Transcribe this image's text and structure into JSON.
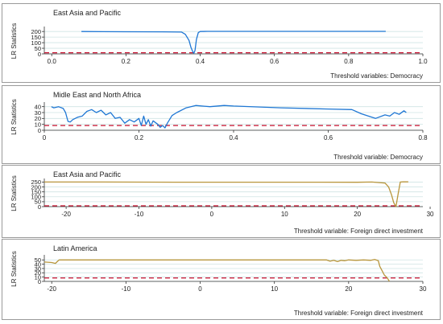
{
  "chart_data": [
    {
      "type": "line",
      "title": "East Asia and Pacific",
      "xlabel": "Threshold variables: Democracy",
      "ylabel": "LR Statistics",
      "xlim": [
        -0.02,
        1.0
      ],
      "ylim": [
        0,
        230
      ],
      "xticks": [
        0.0,
        0.2,
        0.4,
        0.6,
        0.8,
        1.0
      ],
      "xtick_labels": [
        "0.0",
        "0.2",
        "0.4",
        "0.6",
        "0.8",
        "1.0"
      ],
      "yticks": [
        0,
        50,
        100,
        150,
        200
      ],
      "ytick_labels": [
        "0",
        "50",
        "100",
        "150",
        "200"
      ],
      "grid": true,
      "threshold": 10,
      "series": [
        {
          "color": "#1f77d4",
          "x": [
            0.08,
            0.2,
            0.3,
            0.35,
            0.36,
            0.37,
            0.375,
            0.38,
            0.383,
            0.386,
            0.39,
            0.395,
            0.4,
            0.42,
            0.5,
            0.6,
            0.7,
            0.8,
            0.9
          ],
          "y": [
            200,
            198,
            197,
            195,
            175,
            120,
            60,
            20,
            5,
            30,
            130,
            190,
            200,
            201,
            201,
            201,
            201,
            201,
            201
          ]
        }
      ]
    },
    {
      "type": "line",
      "title": "Midle East and North Africa",
      "xlabel": "Threshold variable: Democracy",
      "ylabel": "LR Statistics",
      "xlim": [
        0.0,
        0.8
      ],
      "ylim": [
        0,
        45
      ],
      "xticks": [
        0.0,
        0.2,
        0.4,
        0.6,
        0.8
      ],
      "xtick_labels": [
        "0",
        "0.2",
        "0.4",
        "0.6",
        "0.8"
      ],
      "yticks": [
        0,
        10,
        20,
        30,
        40
      ],
      "ytick_labels": [
        "0",
        "10",
        "20",
        "30",
        "40"
      ],
      "grid": true,
      "threshold": 8,
      "series": [
        {
          "color": "#1f77d4",
          "x": [
            0.015,
            0.02,
            0.03,
            0.04,
            0.045,
            0.05,
            0.055,
            0.06,
            0.07,
            0.08,
            0.09,
            0.1,
            0.11,
            0.12,
            0.13,
            0.14,
            0.15,
            0.16,
            0.17,
            0.18,
            0.19,
            0.2,
            0.205,
            0.21,
            0.215,
            0.22,
            0.225,
            0.23,
            0.24,
            0.245,
            0.25,
            0.255,
            0.26,
            0.27,
            0.28,
            0.3,
            0.32,
            0.35,
            0.38,
            0.4,
            0.5,
            0.6,
            0.65,
            0.67,
            0.7,
            0.72,
            0.73,
            0.74,
            0.75,
            0.76,
            0.765
          ],
          "y": [
            40,
            38,
            40,
            37,
            30,
            15,
            14,
            18,
            22,
            24,
            32,
            35,
            30,
            34,
            26,
            30,
            20,
            22,
            12,
            18,
            14,
            20,
            8,
            24,
            10,
            18,
            7,
            16,
            10,
            5,
            8,
            4,
            12,
            25,
            30,
            38,
            42,
            40,
            42,
            41,
            38,
            36,
            35,
            28,
            20,
            26,
            24,
            30,
            27,
            33,
            30
          ]
        }
      ]
    },
    {
      "type": "line",
      "title": "East Asia and Pacific",
      "xlabel": "Threshold variable: Foreign direct investment",
      "ylabel": "LR Statistics",
      "xlim": [
        -23,
        29
      ],
      "ylim": [
        0,
        270
      ],
      "xticks": [
        -20,
        -10,
        0,
        10,
        20,
        30
      ],
      "xtick_labels": [
        "-20",
        "-10",
        "0",
        "10",
        "20",
        "30"
      ],
      "yticks": [
        0,
        50,
        100,
        150,
        200,
        250
      ],
      "ytick_labels": [
        "0",
        "50",
        "100",
        "150",
        "200",
        "250"
      ],
      "grid": true,
      "threshold": 8,
      "series": [
        {
          "color": "#b8963c",
          "x": [
            -23,
            -15,
            -5,
            5,
            15,
            20,
            22,
            23,
            23.8,
            24.3,
            24.7,
            25.0,
            25.3,
            25.6,
            25.9,
            26.3,
            26.6,
            27
          ],
          "y": [
            250,
            250,
            249,
            249,
            249,
            248,
            250,
            245,
            240,
            200,
            120,
            40,
            0,
            130,
            250,
            252,
            252,
            252
          ]
        }
      ]
    },
    {
      "type": "line",
      "title": "Latin America",
      "xlabel": "Threshold variable: Foreign direct investment",
      "ylabel": "LR Statistics",
      "xlim": [
        -21,
        30
      ],
      "ylim": [
        0,
        58
      ],
      "xticks": [
        -20,
        -10,
        0,
        10,
        20,
        30
      ],
      "xtick_labels": [
        "-20",
        "-10",
        "0",
        "10",
        "20",
        "30"
      ],
      "yticks": [
        0,
        10,
        20,
        30,
        40,
        50
      ],
      "ytick_labels": [
        "0",
        "10",
        "20",
        "30",
        "40",
        "50"
      ],
      "grid": true,
      "threshold": 8,
      "series": [
        {
          "color": "#b8963c",
          "x": [
            -21,
            -20,
            -19.5,
            -19.2,
            -19,
            -18,
            -10,
            0,
            10,
            17,
            17.5,
            18,
            18.5,
            19,
            19.5,
            20,
            21,
            22,
            23,
            23.5,
            24,
            24.2,
            24.5,
            24.8,
            25.2,
            25.5
          ],
          "y": [
            45,
            44,
            42,
            47,
            50,
            50,
            50,
            50,
            50,
            50,
            47,
            49,
            46,
            49,
            48,
            50,
            49,
            50,
            49,
            51,
            48,
            35,
            25,
            15,
            8,
            0
          ]
        }
      ]
    }
  ]
}
